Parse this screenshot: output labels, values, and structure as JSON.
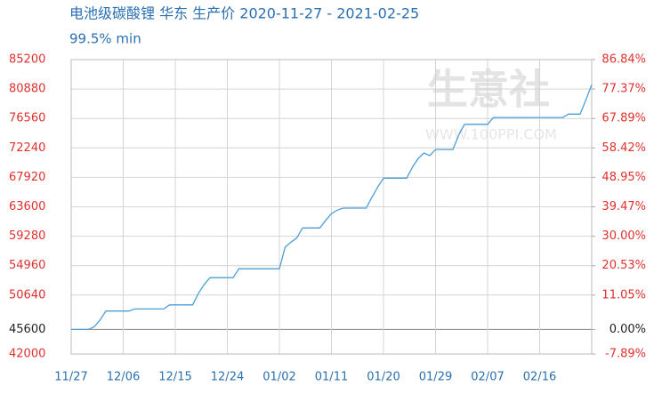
{
  "chart_data": {
    "type": "line",
    "title": "电池级碳酸锂 华东 生产价 2020-11-27 - 2021-02-25",
    "subtitle": "99.5% min",
    "watermark": "生意社",
    "watermark_url": "WWW.100PPI.COM",
    "x": [
      "11/27",
      "11/28",
      "11/29",
      "11/30",
      "12/01",
      "12/02",
      "12/03",
      "12/04",
      "12/05",
      "12/06",
      "12/07",
      "12/08",
      "12/09",
      "12/10",
      "12/11",
      "12/12",
      "12/13",
      "12/14",
      "12/15",
      "12/16",
      "12/17",
      "12/18",
      "12/19",
      "12/20",
      "12/21",
      "12/22",
      "12/23",
      "12/24",
      "12/25",
      "12/26",
      "12/27",
      "12/28",
      "12/29",
      "12/30",
      "12/31",
      "01/01",
      "01/02",
      "01/03",
      "01/04",
      "01/05",
      "01/06",
      "01/07",
      "01/08",
      "01/09",
      "01/10",
      "01/11",
      "01/12",
      "01/13",
      "01/14",
      "01/15",
      "01/16",
      "01/17",
      "01/18",
      "01/19",
      "01/20",
      "01/21",
      "01/22",
      "01/23",
      "01/24",
      "01/25",
      "01/26",
      "01/27",
      "01/28",
      "01/29",
      "01/30",
      "01/31",
      "02/01",
      "02/02",
      "02/03",
      "02/04",
      "02/05",
      "02/06",
      "02/07",
      "02/08",
      "02/09",
      "02/10",
      "02/11",
      "02/12",
      "02/13",
      "02/14",
      "02/15",
      "02/16",
      "02/17",
      "02/18",
      "02/19",
      "02/20",
      "02/21",
      "02/22",
      "02/23",
      "02/24",
      "02/25"
    ],
    "series": [
      {
        "color": "#4a9fd8",
        "values": [
          45600,
          45600,
          45600,
          45600,
          46000,
          47000,
          48300,
          48300,
          48300,
          48300,
          48300,
          48600,
          48600,
          48600,
          48600,
          48600,
          48600,
          49200,
          49200,
          49200,
          49200,
          49200,
          50900,
          52200,
          53200,
          53200,
          53200,
          53200,
          53200,
          54500,
          54500,
          54500,
          54500,
          54500,
          54500,
          54500,
          54500,
          57700,
          58400,
          59000,
          60500,
          60500,
          60500,
          60500,
          61600,
          62600,
          63100,
          63400,
          63400,
          63400,
          63400,
          63400,
          65000,
          66500,
          67800,
          67800,
          67800,
          67800,
          67800,
          69400,
          70700,
          71500,
          71100,
          72000,
          72000,
          72000,
          72000,
          74100,
          75700,
          75700,
          75700,
          75700,
          75700,
          76700,
          76700,
          76700,
          76700,
          76700,
          76700,
          76700,
          76700,
          76700,
          76700,
          76700,
          76700,
          76700,
          77200,
          77200,
          77200,
          79300,
          81500
        ]
      }
    ],
    "xticks": [
      "11/27",
      "12/06",
      "12/15",
      "12/24",
      "01/02",
      "01/11",
      "01/20",
      "01/29",
      "02/07",
      "02/16"
    ],
    "ylim": [
      42000,
      85200
    ],
    "yticks": [
      42000,
      45600,
      50640,
      54960,
      59280,
      63600,
      67920,
      72240,
      76560,
      80880,
      85200
    ],
    "y2lim": [
      -7.89,
      86.84
    ],
    "y2ticks": [
      {
        "value": -7.89,
        "label": "-7.89%"
      },
      {
        "value": 0,
        "label": "0.00%"
      },
      {
        "value": 11.05,
        "label": "11.05%"
      },
      {
        "value": 20.53,
        "label": "20.53%"
      },
      {
        "value": 30.0,
        "label": "30.00%"
      },
      {
        "value": 39.47,
        "label": "39.47%"
      },
      {
        "value": 48.95,
        "label": "48.95%"
      },
      {
        "value": 58.42,
        "label": "58.42%"
      },
      {
        "value": 67.89,
        "label": "67.89%"
      },
      {
        "value": 77.37,
        "label": "77.37%"
      },
      {
        "value": 86.84,
        "label": "86.84%"
      }
    ],
    "baseline": 45600,
    "tick_color": "#e0302e",
    "grid": true
  }
}
